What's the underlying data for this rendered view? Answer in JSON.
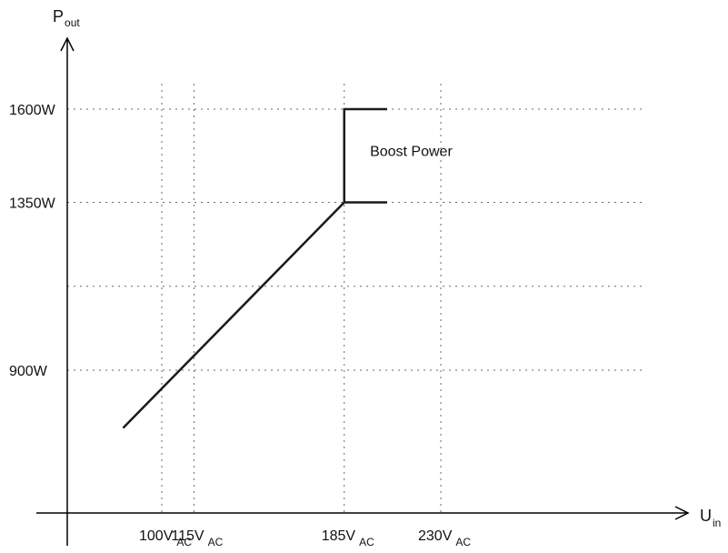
{
  "chart_data": {
    "type": "line",
    "y_axis_label": {
      "main": "P",
      "sub": "out"
    },
    "x_axis_label": {
      "main": "U",
      "sub": "in"
    },
    "y_ticks": [
      {
        "value": 900,
        "label": "900W"
      },
      {
        "value": 1350,
        "label": "1350W"
      },
      {
        "value": 1600,
        "label": "1600W"
      }
    ],
    "y_grid_extra": [
      1125
    ],
    "x_ticks": [
      {
        "value": 100,
        "main": "100V",
        "sub": "AC"
      },
      {
        "value": 115,
        "main": "115V",
        "sub": "AC"
      },
      {
        "value": 185,
        "main": "185V",
        "sub": "AC"
      },
      {
        "value": 230,
        "main": "230V",
        "sub": "AC"
      }
    ],
    "series": [
      {
        "x": [
          82,
          185,
          185,
          205
        ],
        "y": [
          745,
          1350,
          1600,
          1600
        ]
      },
      {
        "x": [
          185,
          205
        ],
        "y": [
          1350,
          1350
        ]
      }
    ],
    "annotation": {
      "text": "Boost Power",
      "x": 197,
      "y": 1475
    },
    "grid": true
  }
}
